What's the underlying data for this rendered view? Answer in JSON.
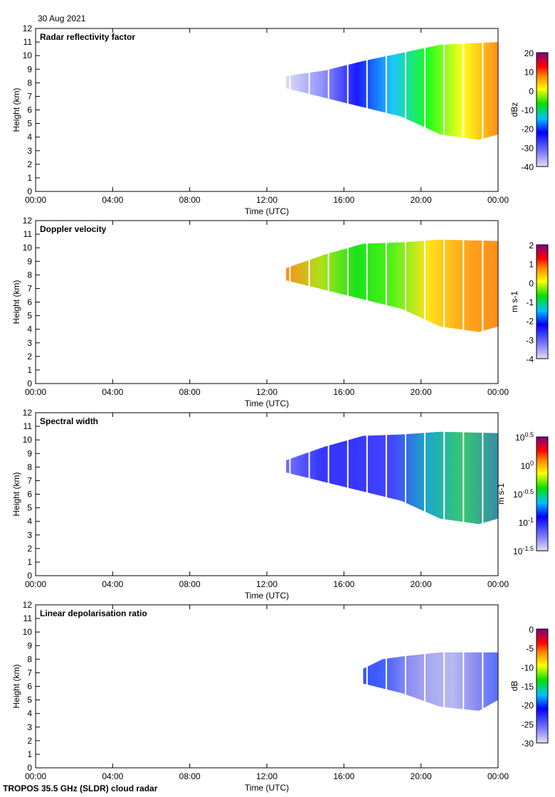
{
  "header": {
    "date": "30 Aug 2021"
  },
  "footer": {
    "instrument": "TROPOS 35.5 GHz (SLDR) cloud radar"
  },
  "chart_data": [
    {
      "type": "heatmap",
      "title": "Radar reflectivity factor",
      "xlabel": "Time (UTC)",
      "ylabel": "Height (km)",
      "xlim": [
        0,
        24
      ],
      "ylim": [
        0,
        12
      ],
      "xticks": [
        "00:00",
        "04:00",
        "08:00",
        "12:00",
        "16:00",
        "20:00",
        "00:00"
      ],
      "yticks": [
        0,
        1,
        2,
        3,
        4,
        5,
        6,
        7,
        8,
        9,
        10,
        11,
        12
      ],
      "colorbar": {
        "label": "dBz",
        "range": [
          -40,
          20
        ],
        "ticks": [
          "20",
          "10",
          "0",
          "-10",
          "-20",
          "-30",
          "-40"
        ]
      },
      "cloud": {
        "top": [
          [
            13,
            8.5
          ],
          [
            15,
            8.9
          ],
          [
            17,
            9.6
          ],
          [
            19,
            10.2
          ],
          [
            21,
            10.8
          ],
          [
            24,
            11
          ]
        ],
        "base": [
          [
            24,
            4.2
          ],
          [
            23,
            3.8
          ],
          [
            21,
            4.2
          ],
          [
            19,
            5.5
          ],
          [
            17,
            6.2
          ],
          [
            15,
            6.9
          ],
          [
            13,
            7.6
          ]
        ]
      },
      "colors": [
        "#d8d8f0",
        "#8888ff",
        "#0000ff",
        "#00c0ff",
        "#00ff00",
        "#ffff00",
        "#ff8000"
      ]
    },
    {
      "type": "heatmap",
      "title": "Doppler velocity",
      "xlabel": "Time (UTC)",
      "ylabel": "Height (km)",
      "xlim": [
        0,
        24
      ],
      "ylim": [
        0,
        12
      ],
      "xticks": [
        "00:00",
        "04:00",
        "08:00",
        "12:00",
        "16:00",
        "20:00",
        "00:00"
      ],
      "yticks": [
        0,
        1,
        2,
        3,
        4,
        5,
        6,
        7,
        8,
        9,
        10,
        11,
        12
      ],
      "colorbar": {
        "label": "m s-1",
        "range": [
          -4,
          2
        ],
        "ticks": [
          "2",
          "1",
          "0",
          "-1",
          "-2",
          "-3",
          "-4"
        ]
      },
      "cloud": {
        "top": [
          [
            13,
            8.5
          ],
          [
            15,
            9.5
          ],
          [
            17,
            10.3
          ],
          [
            19,
            10.4
          ],
          [
            21,
            10.6
          ],
          [
            24,
            10.5
          ]
        ],
        "base": [
          [
            24,
            4.2
          ],
          [
            23,
            3.8
          ],
          [
            21,
            4.2
          ],
          [
            19,
            5.5
          ],
          [
            17,
            6.2
          ],
          [
            15,
            6.9
          ],
          [
            13,
            7.6
          ]
        ]
      },
      "colors": [
        "#ff8000",
        "#a0e000",
        "#00e000",
        "#40f000",
        "#ffe000",
        "#ffa000",
        "#ff8000"
      ]
    },
    {
      "type": "heatmap",
      "title": "Spectral width",
      "xlabel": "Time (UTC)",
      "ylabel": "Height (km)",
      "xlim": [
        0,
        24
      ],
      "ylim": [
        0,
        12
      ],
      "xticks": [
        "00:00",
        "04:00",
        "08:00",
        "12:00",
        "16:00",
        "20:00",
        "00:00"
      ],
      "yticks": [
        0,
        1,
        2,
        3,
        4,
        5,
        6,
        7,
        8,
        9,
        10,
        11,
        12
      ],
      "colorbar": {
        "label": "m s-1",
        "range": [
          -1.5,
          0.5
        ],
        "log": true,
        "ticks": [
          "10^0.5",
          "10^0",
          "10^-0.5",
          "10^-1",
          "10^-1.5"
        ]
      },
      "cloud": {
        "top": [
          [
            13,
            8.5
          ],
          [
            15,
            9.5
          ],
          [
            17,
            10.3
          ],
          [
            19,
            10.4
          ],
          [
            21,
            10.6
          ],
          [
            24,
            10.5
          ]
        ],
        "base": [
          [
            24,
            4.2
          ],
          [
            23,
            3.8
          ],
          [
            21,
            4.2
          ],
          [
            19,
            5.5
          ],
          [
            17,
            6.2
          ],
          [
            15,
            6.9
          ],
          [
            13,
            7.6
          ]
        ]
      },
      "colors": [
        "#6060ff",
        "#2020ff",
        "#2020ff",
        "#3030ff",
        "#00a0c0",
        "#20c060",
        "#2080a0"
      ]
    },
    {
      "type": "heatmap",
      "title": "Linear depolarisation ratio",
      "xlabel": "Time (UTC)",
      "ylabel": "Height (km)",
      "xlim": [
        0,
        24
      ],
      "ylim": [
        0,
        12
      ],
      "xticks": [
        "00:00",
        "04:00",
        "08:00",
        "12:00",
        "16:00",
        "20:00",
        "00:00"
      ],
      "yticks": [
        0,
        1,
        2,
        3,
        4,
        5,
        6,
        7,
        8,
        9,
        10,
        11,
        12
      ],
      "colorbar": {
        "label": "dB",
        "range": [
          -30,
          0
        ],
        "ticks": [
          "0",
          "-5",
          "-10",
          "-15",
          "-20",
          "-25",
          "-30"
        ]
      },
      "cloud": {
        "top": [
          [
            17,
            7.3
          ],
          [
            18,
            8
          ],
          [
            19,
            8.2
          ],
          [
            21,
            8.5
          ],
          [
            24,
            8.5
          ]
        ],
        "base": [
          [
            24,
            5
          ],
          [
            23,
            4.2
          ],
          [
            21,
            4.5
          ],
          [
            19,
            5.5
          ],
          [
            17,
            6.2
          ]
        ]
      },
      "colors": [
        "#2040ff",
        "#3050ff",
        "#8080f0",
        "#a0a0f0",
        "#b0b0f0",
        "#8080f0",
        "#4060ff"
      ]
    }
  ]
}
